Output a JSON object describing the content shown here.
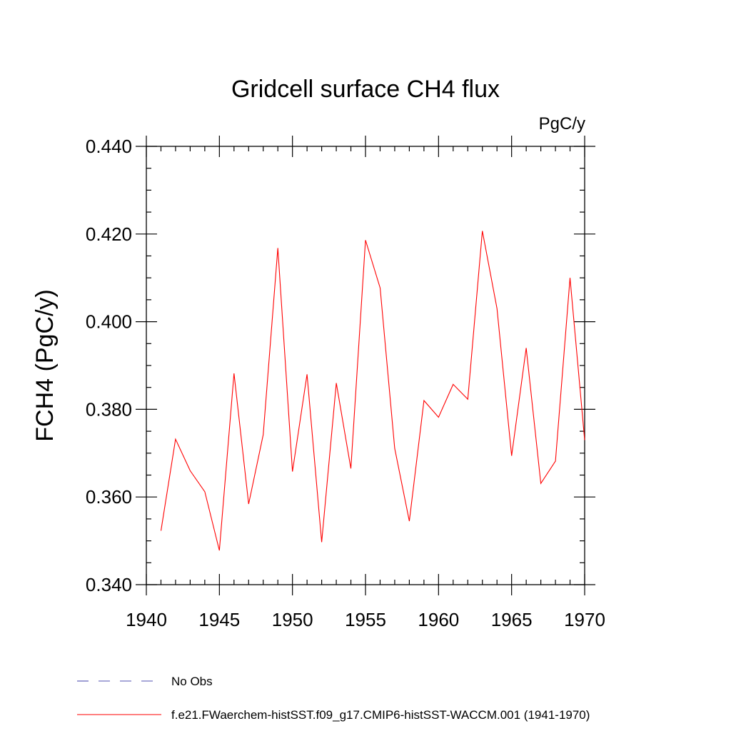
{
  "chart_data": {
    "type": "line",
    "title": "Gridcell surface CH4 flux",
    "units_label": "PgC/y",
    "ylabel": "FCH4  (PgC/y)",
    "xlabel": "",
    "xlim": [
      1940,
      1970
    ],
    "ylim": [
      0.34,
      0.44
    ],
    "x_ticks": [
      1940,
      1945,
      1950,
      1955,
      1960,
      1965,
      1970
    ],
    "x_tick_labels": [
      "1940",
      "1945",
      "1950",
      "1955",
      "1960",
      "1965",
      "1970"
    ],
    "y_ticks": [
      0.34,
      0.36,
      0.38,
      0.4,
      0.42,
      0.44
    ],
    "y_tick_labels": [
      "0.340",
      "0.360",
      "0.380",
      "0.400",
      "0.420",
      "0.440"
    ],
    "grid": false,
    "legend_position": "bottom",
    "series": [
      {
        "name": "f.e21.FWaerchem-histSST.f09_g17.CMIP6-histSST-WACCM.001 (1941-1970)",
        "color": "#ff0000",
        "style": "solid",
        "x": [
          1941,
          1942,
          1943,
          1944,
          1945,
          1946,
          1947,
          1948,
          1949,
          1950,
          1951,
          1952,
          1953,
          1954,
          1955,
          1956,
          1957,
          1958,
          1959,
          1960,
          1961,
          1962,
          1963,
          1964,
          1965,
          1966,
          1967,
          1968,
          1969,
          1970
        ],
        "y": [
          0.3523,
          0.3732,
          0.366,
          0.3612,
          0.3478,
          0.3882,
          0.3584,
          0.3742,
          0.4168,
          0.3658,
          0.388,
          0.3497,
          0.386,
          0.3665,
          0.4186,
          0.4077,
          0.3711,
          0.3545,
          0.382,
          0.3782,
          0.3857,
          0.3823,
          0.4207,
          0.403,
          0.3694,
          0.394,
          0.3631,
          0.3682,
          0.41,
          0.373
        ]
      }
    ],
    "legend": [
      {
        "label": "No Obs",
        "color": "#5050b0",
        "style": "dashed"
      },
      {
        "label": "f.e21.FWaerchem-histSST.f09_g17.CMIP6-histSST-WACCM.001 (1941-1970)",
        "color": "#ff0000",
        "style": "solid"
      }
    ]
  }
}
